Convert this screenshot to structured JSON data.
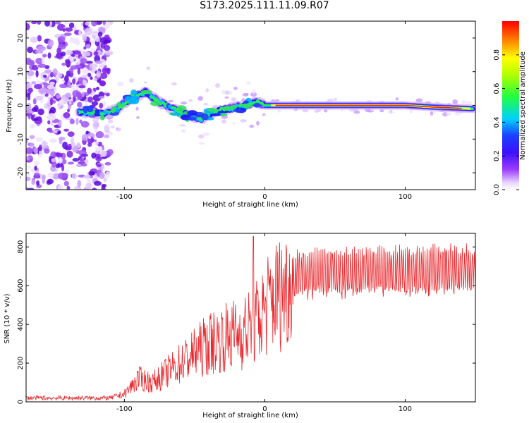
{
  "title": "S173.2025.111.11.09.R07",
  "chart_data": [
    {
      "type": "heatmap",
      "name": "spectrogram",
      "xlabel": "Height of straight line (km)",
      "ylabel": "Frequency (Hz)",
      "xlim": [
        -170,
        150
      ],
      "ylim": [
        -25,
        25
      ],
      "xticks": [
        -100,
        0,
        100
      ],
      "yticks": [
        -20,
        -10,
        0,
        10,
        20
      ],
      "colorbar": {
        "label": "Normalized spectral amplitude",
        "range": [
          0,
          1
        ],
        "ticks": [
          0.0,
          0.2,
          0.4,
          0.6,
          0.8
        ],
        "tick_labels": [
          "0.0",
          "0.2",
          "0.4",
          "0.6",
          "0.8"
        ]
      },
      "ridge": {
        "description_points": [
          [
            -130,
            -2
          ],
          [
            -115,
            -2.5
          ],
          [
            -105,
            -1
          ],
          [
            -95,
            2
          ],
          [
            -85,
            4
          ],
          [
            -75,
            1
          ],
          [
            -65,
            -1
          ],
          [
            -55,
            -3
          ],
          [
            -45,
            -4
          ],
          [
            -35,
            -1.5
          ],
          [
            -25,
            -1
          ],
          [
            -15,
            0
          ],
          [
            -5,
            1
          ],
          [
            0,
            0
          ],
          [
            10,
            0
          ],
          [
            40,
            0
          ],
          [
            80,
            0
          ],
          [
            100,
            0
          ],
          [
            120,
            -0.5
          ],
          [
            148,
            -1
          ]
        ]
      }
    },
    {
      "type": "line",
      "name": "snr",
      "xlabel": "Height of straight line (km)",
      "ylabel": "SNR (10 * v/v)",
      "xlim": [
        -170,
        150
      ],
      "ylim": [
        0,
        870
      ],
      "xticks": [
        -100,
        0,
        100
      ],
      "yticks": [
        0,
        200,
        400,
        600,
        800
      ],
      "color": "#e8262b",
      "profile": [
        [
          -170,
          20
        ],
        [
          -110,
          20
        ],
        [
          -100,
          40
        ],
        [
          -90,
          120
        ],
        [
          -80,
          100
        ],
        [
          -70,
          150
        ],
        [
          -60,
          200
        ],
        [
          -50,
          250
        ],
        [
          -40,
          300
        ],
        [
          -30,
          330
        ],
        [
          -20,
          350
        ],
        [
          -10,
          380
        ],
        [
          -5,
          420
        ],
        [
          0,
          480
        ],
        [
          5,
          530
        ],
        [
          10,
          560
        ],
        [
          15,
          590
        ],
        [
          20,
          620
        ],
        [
          25,
          640
        ],
        [
          40,
          650
        ],
        [
          60,
          650
        ],
        [
          80,
          655
        ],
        [
          100,
          655
        ],
        [
          120,
          660
        ],
        [
          150,
          660
        ]
      ],
      "peak": [
        -8,
        855
      ]
    }
  ]
}
